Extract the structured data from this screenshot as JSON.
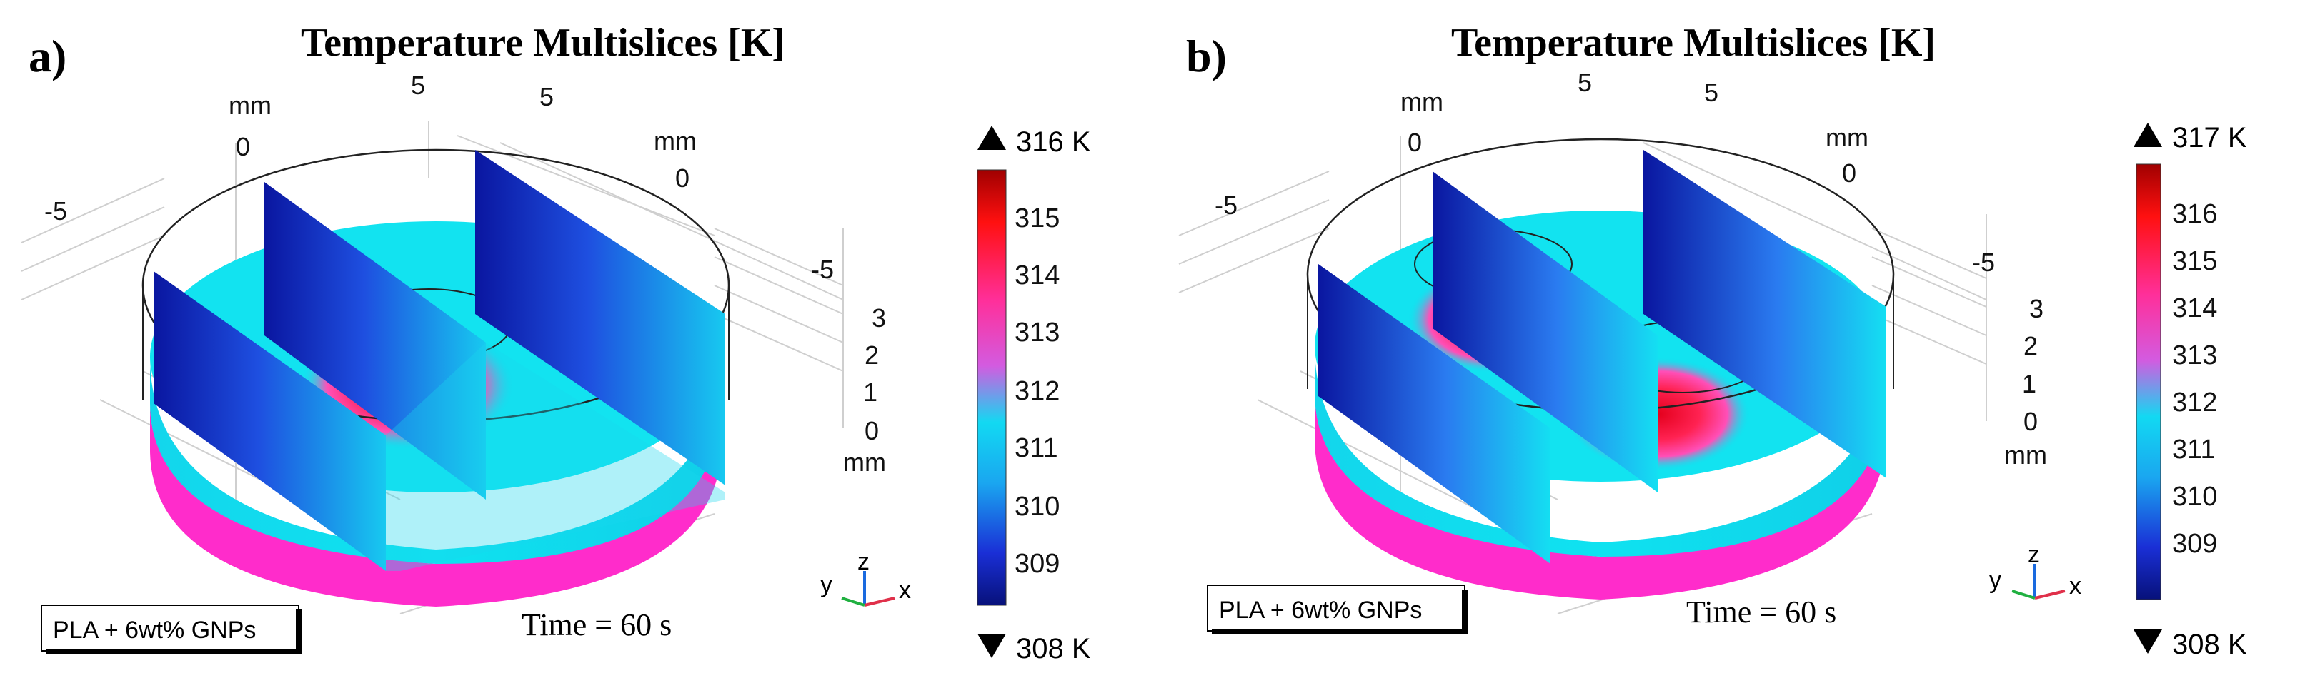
{
  "panels": [
    {
      "id": "a",
      "label": "a)",
      "title": "Temperature Multislices [K]",
      "material": "PLA + 6wt% GNPs",
      "time": "Time = 60 s",
      "axis_labels": {
        "top_left_mm": "mm",
        "top_left_val": "0",
        "top_mid_val": "5",
        "top_right_val": "5",
        "right_mm": "mm",
        "right_val": "0",
        "left_val": "-5",
        "side_val": "-5",
        "z_ticks": [
          "3",
          "2",
          "1",
          "0"
        ],
        "z_mm": "mm"
      },
      "colorbar": {
        "max_label": "316 K",
        "min_label": "308 K",
        "ticks": [
          "315",
          "314",
          "313",
          "312",
          "311",
          "310",
          "309"
        ]
      },
      "triad": {
        "x": "x",
        "y": "y",
        "z": "z"
      }
    },
    {
      "id": "b",
      "label": "b)",
      "title": "Temperature Multislices [K]",
      "material": "PLA + 6wt% GNPs",
      "time": "Time = 60 s",
      "axis_labels": {
        "top_left_mm": "mm",
        "top_left_val": "0",
        "top_mid_val": "5",
        "top_right_val": "5",
        "right_mm": "mm",
        "right_val": "0",
        "left_val": "-5",
        "side_val": "-5",
        "z_ticks": [
          "3",
          "2",
          "1",
          "0"
        ],
        "z_mm": "mm"
      },
      "colorbar": {
        "max_label": "317 K",
        "min_label": "308 K",
        "ticks": [
          "316",
          "315",
          "314",
          "313",
          "312",
          "311",
          "310",
          "309"
        ]
      },
      "triad": {
        "x": "x",
        "y": "y",
        "z": "z"
      }
    }
  ],
  "colors": {
    "hot": "#e8002a",
    "warm": "#ff2fa0",
    "mid": "#c24ad8",
    "cyan": "#00e6f0",
    "blue": "#0a1aa8",
    "magenta_base": "#ff2ccb"
  }
}
